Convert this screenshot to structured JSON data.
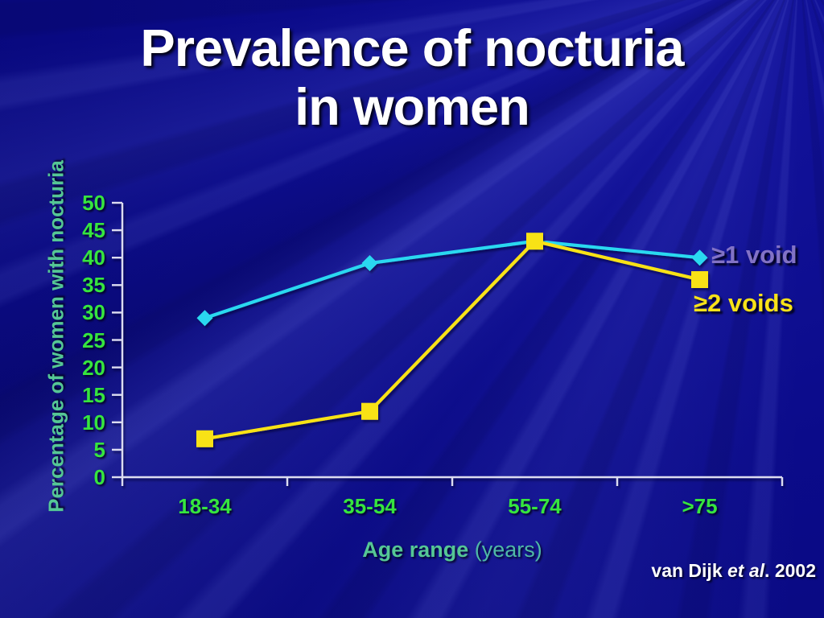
{
  "slide": {
    "title_line1": "Prevalence of nocturia",
    "title_line2": "in women",
    "citation": {
      "authors": "van Dijk ",
      "etal": "et al",
      "suffix": ". 2002"
    }
  },
  "chart_data": {
    "type": "line",
    "title": "Prevalence of nocturia in women",
    "categories": [
      "18-34",
      "35-54",
      "55-74",
      ">75"
    ],
    "series": [
      {
        "name": "≥1 void",
        "marker": "diamond",
        "color": "#29d8f0",
        "label_color": "#8272c6",
        "values": [
          29,
          39,
          43,
          40
        ]
      },
      {
        "name": "≥2 voids",
        "marker": "square",
        "color": "#f8e218",
        "label_color": "#f8e218",
        "values": [
          7,
          12,
          43,
          36
        ]
      }
    ],
    "xlabel": "Age range",
    "xlabel_unit": "(years)",
    "ylabel": "Percentage of women with nocturia",
    "ylim": [
      0,
      50
    ],
    "yticks": [
      0,
      5,
      10,
      15,
      20,
      25,
      30,
      35,
      40,
      45,
      50
    ],
    "grid": false,
    "legend_position": "right-of-last-points",
    "colors": {
      "axis": "#dcdcf0",
      "tick_label_green": "#36e53e",
      "axis_title_seafoam": "#55c795",
      "unit_seafoam_light": "#4fb9a6",
      "title_white": "#ffffff",
      "background_navy": "#0a0a86"
    }
  }
}
